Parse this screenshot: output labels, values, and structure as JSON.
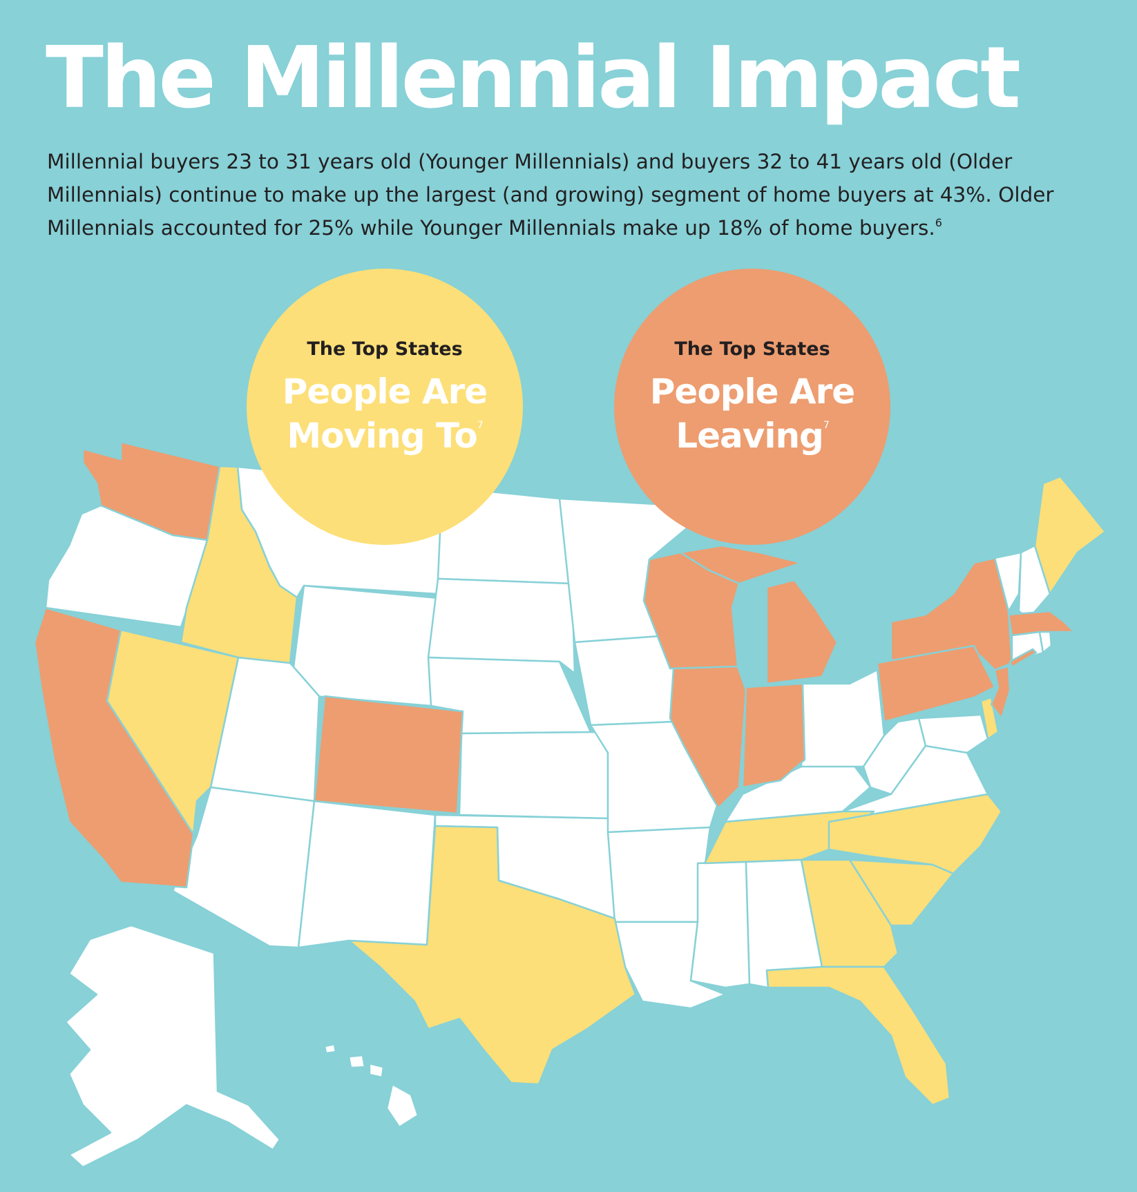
{
  "title": "The Millennial Impact",
  "intro": {
    "text": "Millennial buyers 23 to 31 years old (Younger Millennials) and buyers 32 to 41 years old (Older Millennials) continue to make up the largest (and growing) segment of home buyers at 43%. Older Millennials accounted for 25% while Younger Millennials make up 18% of home buyers.",
    "footnote": "6"
  },
  "legend": {
    "moving": {
      "kicker": "The Top States",
      "line1": "People Are",
      "line2": "Moving To",
      "footnote": "7",
      "color": "#fcdf78"
    },
    "leaving": {
      "kicker": "The Top States",
      "line1": "People Are",
      "line2": "Leaving",
      "footnote": "7",
      "color": "#ed9d70"
    }
  },
  "colors": {
    "background": "#87d1d7",
    "neutral_state": "#ffffff",
    "moving_to": "#fcdf78",
    "leaving": "#ed9d70",
    "borders": "#87d1d7"
  },
  "map": {
    "moving_to_states": [
      "Idaho",
      "Nevada",
      "Texas",
      "Tennessee",
      "North Carolina",
      "South Carolina",
      "Georgia",
      "Florida",
      "Maine",
      "Delaware"
    ],
    "leaving_states": [
      "Washington",
      "California",
      "Colorado",
      "Wisconsin",
      "Illinois",
      "Michigan",
      "Indiana",
      "New York",
      "Pennsylvania",
      "Massachusetts",
      "New Jersey"
    ]
  }
}
